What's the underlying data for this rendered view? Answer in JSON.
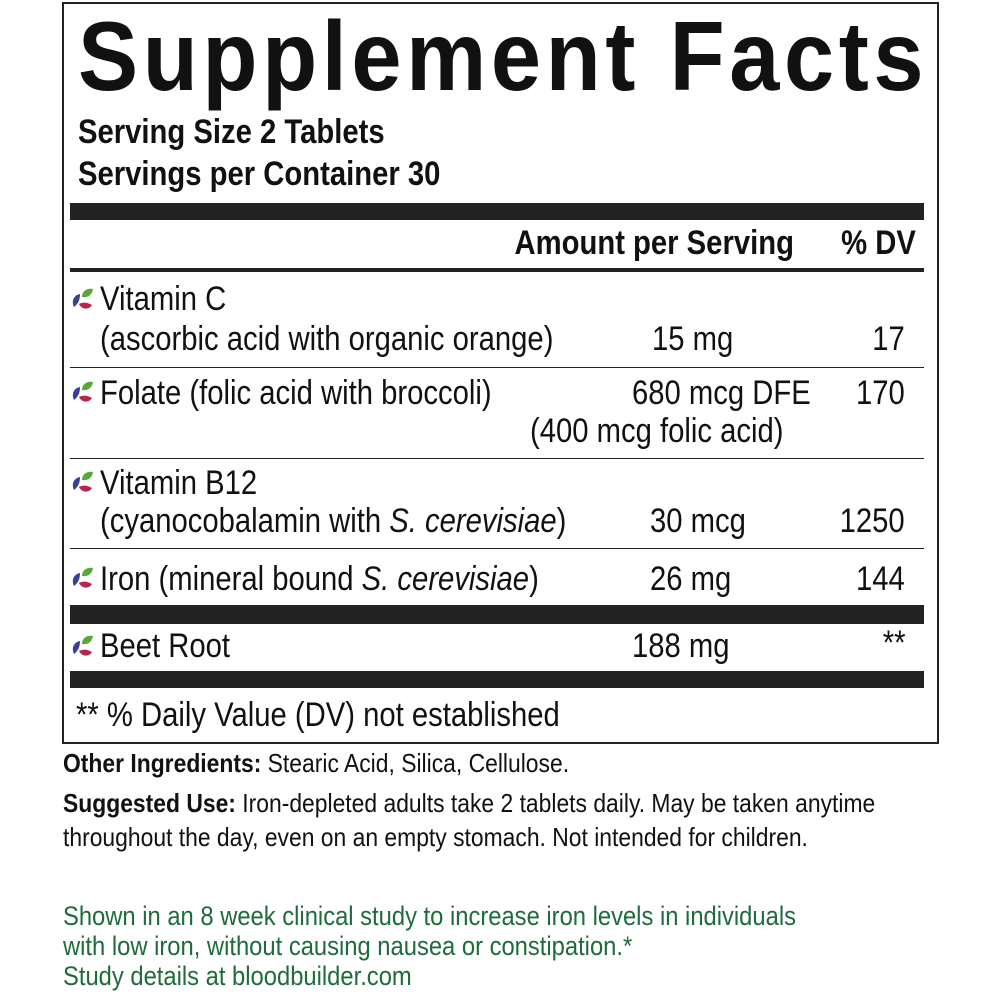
{
  "title": "Supplement Facts",
  "serving_size": "Serving Size 2 Tablets",
  "servings_per_container": "Servings per Container 30",
  "header": {
    "amount": "Amount per Serving",
    "dv": "% DV"
  },
  "rows": [
    {
      "name": "Vitamin C",
      "detail": "(ascorbic acid with organic orange)",
      "amount": "15 mg",
      "dv": "17"
    },
    {
      "name": "Folate (folic acid with broccoli)",
      "amount": "680 mcg DFE",
      "amount2": "(400 mcg folic acid)",
      "dv": "170"
    },
    {
      "name": "Vitamin B12",
      "detail_pre": "(cyanocobalamin with ",
      "detail_italic": "S. cerevisiae",
      "detail_post": ")",
      "amount": "30 mcg",
      "dv": "1250"
    },
    {
      "name_pre": "Iron (mineral bound ",
      "name_italic": "S. cerevisiae",
      "name_post": ")",
      "amount": "26 mg",
      "dv": "144"
    },
    {
      "name": "Beet Root",
      "amount": "188 mg",
      "dv": "**"
    }
  ],
  "footnote": "** % Daily Value (DV) not established",
  "other_ingredients": {
    "label": "Other Ingredients:",
    "text": " Stearic Acid, Silica, Cellulose."
  },
  "suggested_use": {
    "label": "Suggested Use:",
    "text": " Iron-depleted adults take 2 tablets daily. May be taken anytime throughout the day, even on an empty stomach. Not intended for children."
  },
  "claim": {
    "line1": "Shown in an 8 week clinical study to increase iron levels in individuals",
    "line2": "with low iron, without causing nausea or constipation.*",
    "line3": "Study details at bloodbuilder.com"
  },
  "colors": {
    "claim": "#1e6b3c",
    "icon": [
      "#5aa83c",
      "#3b3f9c",
      "#b8254a"
    ]
  },
  "icon": "leaf-trio-icon"
}
